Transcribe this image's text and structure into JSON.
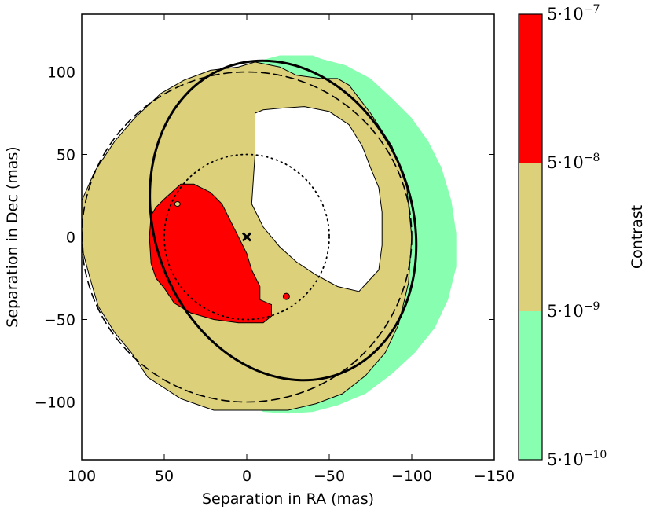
{
  "chart_data": {
    "type": "contour",
    "xlabel": "Separation in RA (mas)",
    "ylabel": "Separation in Dec (mas)",
    "xlim": [
      100,
      -150
    ],
    "ylim": [
      -135,
      135
    ],
    "x_ticks": [
      100,
      50,
      0,
      -50,
      -100,
      -150
    ],
    "y_ticks": [
      -100,
      -50,
      0,
      50,
      100
    ],
    "x_tick_labels": [
      "100",
      "50",
      "0",
      "−50",
      "−100",
      "−150"
    ],
    "y_tick_labels": [
      "−100",
      "−50",
      "0",
      "50",
      "100"
    ],
    "colorbar": {
      "label": "Contrast",
      "scale": "log",
      "levels": [
        {
          "base": "5",
          "exponent": "−10"
        },
        {
          "base": "5",
          "exponent": "−9"
        },
        {
          "base": "5",
          "exponent": "−8"
        },
        {
          "base": "5",
          "exponent": "−7"
        }
      ],
      "colors": [
        "#88ffb0",
        "#ddd07a",
        "#ff0000"
      ]
    },
    "regions": [
      {
        "name": "5e-10 to 5e-9",
        "color": "#88ffb0",
        "outline": [
          [
            -40,
            110
          ],
          [
            -45,
            108
          ],
          [
            -60,
            104
          ],
          [
            -75,
            96
          ],
          [
            -88,
            84
          ],
          [
            -100,
            72
          ],
          [
            -110,
            58
          ],
          [
            -118,
            42
          ],
          [
            -124,
            22
          ],
          [
            -127,
            2
          ],
          [
            -127,
            -18
          ],
          [
            -122,
            -38
          ],
          [
            -114,
            -55
          ],
          [
            -102,
            -70
          ],
          [
            -88,
            -83
          ],
          [
            -72,
            -95
          ],
          [
            -55,
            -102
          ],
          [
            -40,
            -106
          ],
          [
            -25,
            -107
          ],
          [
            -10,
            -106
          ],
          [
            0,
            -100
          ],
          [
            10,
            -95
          ],
          [
            15,
            -85
          ],
          [
            5,
            -75
          ],
          [
            -10,
            -60
          ],
          [
            -20,
            -40
          ],
          [
            -15,
            -15
          ],
          [
            -5,
            30
          ],
          [
            -3,
            80
          ],
          [
            -5,
            106
          ],
          [
            -20,
            110
          ]
        ]
      },
      {
        "name": "5e-9 to 5e-8",
        "color": "#ddd07a",
        "outline": [
          [
            -5,
            106
          ],
          [
            -20,
            103
          ],
          [
            -30,
            98
          ],
          [
            -45,
            96
          ],
          [
            -55,
            96
          ],
          [
            -62,
            92
          ],
          [
            -75,
            75
          ],
          [
            -88,
            55
          ],
          [
            -97,
            30
          ],
          [
            -100,
            0
          ],
          [
            -98,
            -28
          ],
          [
            -92,
            -53
          ],
          [
            -84,
            -70
          ],
          [
            -72,
            -84
          ],
          [
            -58,
            -95
          ],
          [
            -42,
            -101
          ],
          [
            -25,
            -105
          ],
          [
            -15,
            -105
          ],
          [
            -5,
            -105
          ],
          [
            10,
            -105
          ],
          [
            20,
            -105
          ],
          [
            40,
            -98
          ],
          [
            60,
            -85
          ],
          [
            70,
            -70
          ],
          [
            80,
            -58
          ],
          [
            90,
            -42
          ],
          [
            95,
            -25
          ],
          [
            99,
            -10
          ],
          [
            100,
            5
          ],
          [
            100,
            22
          ],
          [
            92,
            40
          ],
          [
            80,
            58
          ],
          [
            68,
            72
          ],
          [
            52,
            87
          ],
          [
            38,
            95
          ],
          [
            22,
            101
          ],
          [
            5,
            103
          ]
        ]
      },
      {
        "name": "5e-8 to 5e-7",
        "color": "#ff0000",
        "outline": [
          [
            40,
            32
          ],
          [
            50,
            23
          ],
          [
            55,
            18
          ],
          [
            58,
            13
          ],
          [
            59,
            0
          ],
          [
            58,
            -16
          ],
          [
            55,
            -25
          ],
          [
            50,
            -31
          ],
          [
            44,
            -40
          ],
          [
            34,
            -46
          ],
          [
            20,
            -50
          ],
          [
            5,
            -52
          ],
          [
            -10,
            -52
          ],
          [
            -15,
            -48
          ],
          [
            -15,
            -41
          ],
          [
            -8,
            -38
          ],
          [
            -8,
            -30
          ],
          [
            -3,
            -20
          ],
          [
            0,
            -10
          ],
          [
            5,
            0
          ],
          [
            10,
            10
          ],
          [
            15,
            20
          ],
          [
            22,
            27
          ],
          [
            32,
            32
          ]
        ]
      },
      {
        "name": "unconstrained (blank)",
        "color": "#ffffff",
        "outline": [
          [
            -5,
            75
          ],
          [
            -5,
            50
          ],
          [
            -3,
            20
          ],
          [
            -10,
            6
          ],
          [
            -20,
            -6
          ],
          [
            -30,
            -15
          ],
          [
            -42,
            -23
          ],
          [
            -55,
            -30
          ],
          [
            -68,
            -33
          ],
          [
            -80,
            -20
          ],
          [
            -82,
            -5
          ],
          [
            -82,
            15
          ],
          [
            -80,
            30
          ],
          [
            -75,
            42
          ],
          [
            -70,
            55
          ],
          [
            -62,
            68
          ],
          [
            -50,
            76
          ],
          [
            -35,
            79
          ],
          [
            -20,
            78
          ],
          [
            -10,
            77
          ]
        ]
      }
    ],
    "overlays": [
      {
        "type": "ellipse",
        "style": "solid",
        "center": [
          -22,
          10
        ],
        "rx": 78,
        "ry": 99,
        "rotation_deg": -20
      },
      {
        "type": "circle",
        "style": "dashed",
        "center": [
          0,
          0
        ],
        "r": 100
      },
      {
        "type": "circle",
        "style": "dotted",
        "center": [
          0,
          0
        ],
        "r": 50
      },
      {
        "type": "marker",
        "symbol": "x",
        "position": [
          0,
          0
        ]
      }
    ],
    "small_features": [
      {
        "type": "red-spot",
        "position": [
          -24,
          -36
        ]
      },
      {
        "type": "tan-notch",
        "position": [
          42,
          20
        ]
      }
    ]
  }
}
